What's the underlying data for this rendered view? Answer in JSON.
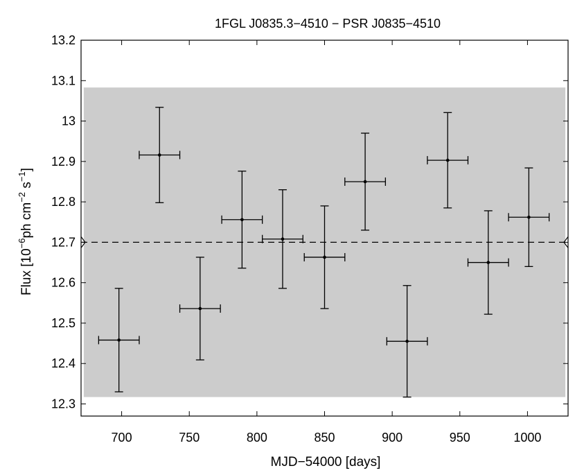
{
  "chart_data": {
    "type": "scatter",
    "title": "1FGL J0835.3−4510 − PSR J0835−4510",
    "xlabel": "MJD−54000 [days]",
    "ylabel": {
      "prefix": "Flux [10",
      "exp1": "−6",
      "mid1": "ph cm",
      "exp2": "−2",
      "mid2": " s",
      "exp3": "−1",
      "suffix": "]"
    },
    "xlim": [
      670,
      1030
    ],
    "ylim": [
      12.27,
      13.2
    ],
    "xticks": [
      700,
      750,
      800,
      850,
      900,
      950,
      1000
    ],
    "yticks": [
      12.3,
      12.4,
      12.5,
      12.6,
      12.7,
      12.8,
      12.9,
      13,
      13.1,
      13.2
    ],
    "xtick_labels": [
      "700",
      "750",
      "800",
      "850",
      "900",
      "950",
      "1000"
    ],
    "ytick_labels": [
      "12.3",
      "12.4",
      "12.5",
      "12.6",
      "12.7",
      "12.8",
      "12.9",
      "13",
      "13.1",
      "13.2"
    ],
    "mean_flux": 12.7,
    "band": [
      12.317,
      13.083
    ],
    "band_xrange": [
      672,
      1028
    ],
    "points": [
      {
        "x": 698,
        "y": 12.458,
        "xerr": 15,
        "yerr_low": 0.128,
        "yerr_high": 0.128
      },
      {
        "x": 728,
        "y": 12.916,
        "xerr": 15,
        "yerr_low": 0.118,
        "yerr_high": 0.118
      },
      {
        "x": 758,
        "y": 12.536,
        "xerr": 15,
        "yerr_low": 0.127,
        "yerr_high": 0.127
      },
      {
        "x": 789,
        "y": 12.756,
        "xerr": 15,
        "yerr_low": 0.12,
        "yerr_high": 0.12
      },
      {
        "x": 819,
        "y": 12.708,
        "xerr": 15,
        "yerr_low": 0.122,
        "yerr_high": 0.122
      },
      {
        "x": 850,
        "y": 12.663,
        "xerr": 15,
        "yerr_low": 0.127,
        "yerr_high": 0.127
      },
      {
        "x": 880,
        "y": 12.85,
        "xerr": 15,
        "yerr_low": 0.12,
        "yerr_high": 0.12
      },
      {
        "x": 911,
        "y": 12.455,
        "xerr": 15,
        "yerr_low": 0.138,
        "yerr_high": 0.138
      },
      {
        "x": 941,
        "y": 12.903,
        "xerr": 15,
        "yerr_low": 0.118,
        "yerr_high": 0.118
      },
      {
        "x": 971,
        "y": 12.65,
        "xerr": 15,
        "yerr_low": 0.128,
        "yerr_high": 0.128
      },
      {
        "x": 1001,
        "y": 12.762,
        "xerr": 15,
        "yerr_low": 0.122,
        "yerr_high": 0.122
      }
    ],
    "colors": {
      "band": "#cccccc",
      "marks": "#000000",
      "background": "#ffffff"
    },
    "grid": false
  }
}
